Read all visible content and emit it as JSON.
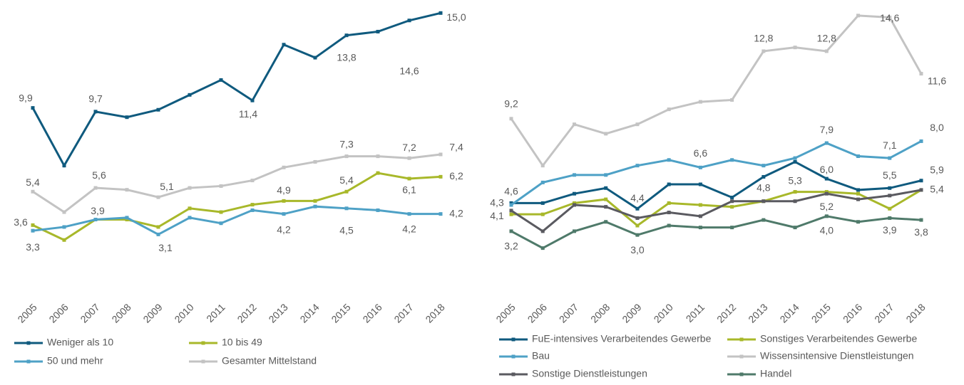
{
  "chart_data": [
    {
      "type": "line",
      "categories": [
        "2005",
        "2006",
        "2007",
        "2008",
        "2009",
        "2010",
        "2011",
        "2012",
        "2013",
        "2014",
        "2015",
        "2016",
        "2017",
        "2018"
      ],
      "ylim": [
        0.4,
        15.7
      ],
      "series": [
        {
          "name": "Weniger als 10",
          "color": "#0f5a7e",
          "values": [
            9.9,
            6.8,
            9.7,
            9.4,
            9.8,
            10.6,
            11.4,
            10.3,
            13.3,
            12.6,
            13.8,
            14.0,
            14.6,
            15.0
          ],
          "value_labels": [
            "9,9",
            null,
            "9,7",
            null,
            null,
            null,
            "11,4",
            null,
            null,
            null,
            "13,8",
            null,
            "14,6",
            "15,0"
          ]
        },
        {
          "name": "10 bis 49",
          "color": "#a8b82a",
          "values": [
            3.6,
            2.8,
            3.9,
            3.9,
            3.5,
            4.5,
            4.3,
            4.7,
            4.9,
            4.9,
            5.4,
            6.4,
            6.1,
            6.2
          ],
          "value_labels": [
            "3,6",
            null,
            null,
            null,
            null,
            null,
            null,
            null,
            "4,9",
            null,
            "5,4",
            null,
            "6,1",
            "6,2"
          ]
        },
        {
          "name": "50 und mehr",
          "color": "#4ea1c6",
          "values": [
            3.3,
            3.5,
            3.9,
            4.0,
            3.1,
            4.0,
            3.7,
            4.4,
            4.2,
            4.6,
            4.5,
            4.4,
            4.2,
            4.2
          ],
          "value_labels": [
            "3,3",
            null,
            "3,9",
            null,
            "3,1",
            null,
            null,
            null,
            "4,2",
            null,
            "4,5",
            null,
            "4,2",
            "4,2"
          ]
        },
        {
          "name": "Gesamter Mittelstand",
          "color": "#c3c3c3",
          "values": [
            5.4,
            4.3,
            5.6,
            5.5,
            5.1,
            5.6,
            5.7,
            6.0,
            6.7,
            7.0,
            7.3,
            7.3,
            7.2,
            7.4
          ],
          "value_labels": [
            "5,4",
            null,
            "5,6",
            null,
            "5,1",
            null,
            null,
            null,
            null,
            null,
            "7,3",
            null,
            "7,2",
            "7,4"
          ]
        }
      ]
    },
    {
      "type": "line",
      "categories": [
        "2005",
        "2006",
        "2007",
        "2008",
        "2009",
        "2010",
        "2011",
        "2012",
        "2013",
        "2014",
        "2015",
        "2016",
        "2017",
        "2018"
      ],
      "ylim": [
        0.35,
        15.53
      ],
      "series": [
        {
          "name": "FuE-intensives Verarbeitendes Gewerbe",
          "color": "#0f5a7e",
          "values": [
            4.7,
            4.7,
            5.2,
            5.5,
            4.4,
            5.7,
            5.7,
            5.0,
            6.1,
            6.9,
            6.0,
            5.4,
            5.5,
            5.9
          ],
          "value_labels": [
            null,
            null,
            null,
            null,
            "4,4",
            null,
            null,
            null,
            null,
            null,
            "6,0",
            null,
            "5,5",
            "5,9"
          ]
        },
        {
          "name": "Sonstiges Verarbeitendes Gewerbe",
          "color": "#a8b82a",
          "values": [
            4.1,
            4.1,
            4.7,
            4.9,
            3.5,
            4.7,
            4.6,
            4.5,
            4.8,
            5.3,
            5.3,
            5.2,
            4.4,
            5.4
          ],
          "value_labels": [
            "4,1",
            null,
            null,
            null,
            null,
            null,
            null,
            null,
            "4,8",
            "5,3",
            null,
            null,
            null,
            "5,4"
          ]
        },
        {
          "name": "Bau",
          "color": "#4ea1c6",
          "values": [
            4.6,
            5.8,
            6.2,
            6.2,
            6.7,
            7.0,
            6.6,
            7.0,
            6.7,
            7.1,
            7.9,
            7.2,
            7.1,
            8.0
          ],
          "value_labels": [
            "4,6",
            null,
            null,
            null,
            null,
            null,
            "6,6",
            null,
            null,
            null,
            "7,9",
            null,
            "7,1",
            "8,0"
          ]
        },
        {
          "name": "Wissensintensive Dienstleistungen",
          "color": "#c3c3c3",
          "values": [
            9.2,
            6.7,
            8.9,
            8.4,
            8.9,
            9.7,
            10.1,
            10.2,
            12.8,
            13.0,
            12.8,
            14.7,
            14.6,
            11.6
          ],
          "value_labels": [
            "9,2",
            null,
            null,
            null,
            null,
            null,
            null,
            null,
            "12,8",
            null,
            "12,8",
            null,
            "14,6",
            "11,6"
          ]
        },
        {
          "name": "Sonstige Dienstleistungen",
          "color": "#5a5a60",
          "values": [
            4.3,
            3.2,
            4.6,
            4.5,
            3.9,
            4.2,
            4.0,
            4.8,
            4.8,
            4.8,
            5.2,
            4.9,
            5.1,
            5.4
          ],
          "value_labels": [
            "4,3",
            null,
            null,
            null,
            null,
            null,
            null,
            null,
            null,
            null,
            "5,2",
            null,
            null,
            null
          ]
        },
        {
          "name": "Handel",
          "color": "#4f7a6a",
          "values": [
            3.2,
            2.3,
            3.2,
            3.7,
            3.0,
            3.5,
            3.4,
            3.4,
            3.8,
            3.4,
            4.0,
            3.7,
            3.9,
            3.8
          ],
          "value_labels": [
            "3,2",
            null,
            null,
            null,
            "3,0",
            null,
            null,
            null,
            null,
            null,
            "4,0",
            null,
            "3,9",
            "3,8"
          ]
        }
      ]
    }
  ]
}
